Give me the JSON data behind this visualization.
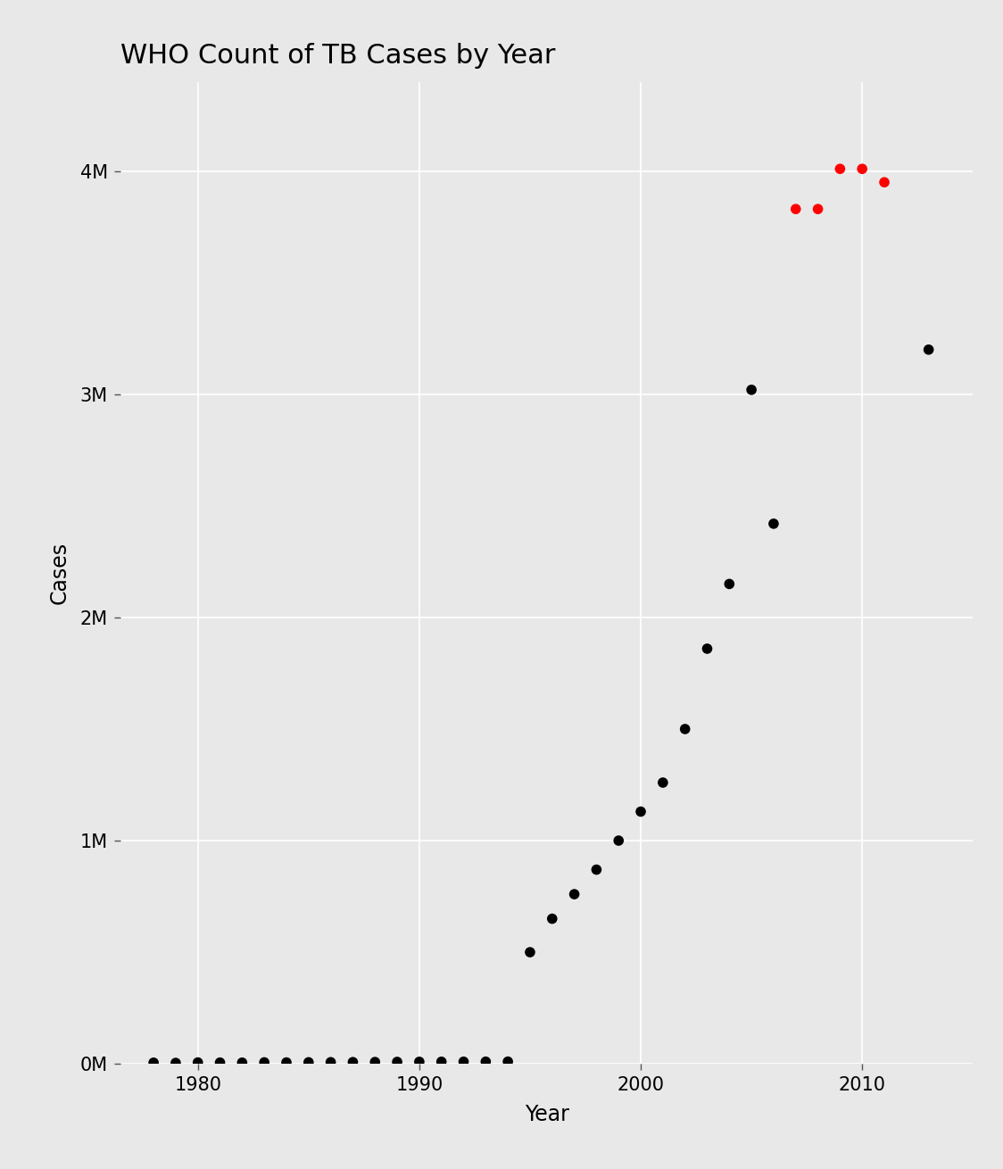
{
  "title": "WHO Count of TB Cases by Year",
  "xlabel": "Year",
  "ylabel": "Cases",
  "background_color": "#E8E8E8",
  "dot_color_normal": "#000000",
  "dot_color_highlight": "#FF0000",
  "threshold": 3500000,
  "years": [
    1978,
    1979,
    1980,
    1981,
    1982,
    1983,
    1984,
    1985,
    1986,
    1987,
    1988,
    1989,
    1990,
    1991,
    1992,
    1993,
    1994,
    1995,
    1996,
    1997,
    1998,
    1999,
    2000,
    2001,
    2002,
    2003,
    2004,
    2005,
    2006,
    2007,
    2008,
    2009,
    2010,
    2011,
    2013
  ],
  "cases": [
    5000,
    4000,
    6000,
    5500,
    5200,
    6500,
    6000,
    6800,
    7200,
    7500,
    8000,
    8500,
    9000,
    9200,
    9400,
    9600,
    9800,
    500000,
    650000,
    760000,
    870000,
    1000000,
    1130000,
    1260000,
    1500000,
    1860000,
    2150000,
    3020000,
    2420000,
    3830000,
    3830000,
    4010000,
    4010000,
    3950000,
    3200000
  ],
  "dot_size": 70,
  "ylim": [
    0,
    4400000
  ],
  "xlim": [
    1976.5,
    2015
  ],
  "yticks": [
    0,
    1000000,
    2000000,
    3000000,
    4000000
  ],
  "ytick_labels": [
    "0M",
    "1M",
    "2M",
    "3M",
    "4M"
  ],
  "xticks": [
    1980,
    1990,
    2000,
    2010
  ],
  "grid_color": "#FFFFFF",
  "grid_linewidth": 1.2,
  "title_fontsize": 22,
  "axis_label_fontsize": 17,
  "tick_label_fontsize": 15
}
